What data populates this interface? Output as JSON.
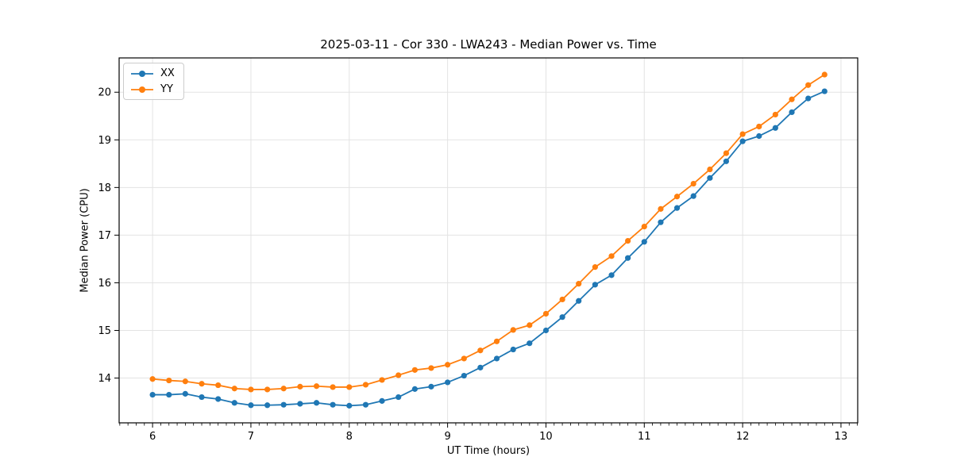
{
  "chart_data": {
    "type": "line",
    "title": "2025-03-11 - Cor 330 - LWA243 - Median Power vs. Time",
    "xlabel": "UT Time (hours)",
    "ylabel": "Median Power (CPU)",
    "xlim": [
      5.66,
      13.17
    ],
    "ylim": [
      13.06,
      20.72
    ],
    "x_ticks": [
      6,
      7,
      8,
      9,
      10,
      11,
      12,
      13
    ],
    "y_ticks": [
      14,
      15,
      16,
      17,
      18,
      19,
      20
    ],
    "x_minor_step": 0.08333,
    "grid": true,
    "legend_position": "upper-left",
    "background_color": "#ffffff",
    "grid_color": "#e3e3e3",
    "spine_color": "#000000",
    "x": [
      6.0,
      6.167,
      6.333,
      6.5,
      6.667,
      6.833,
      7.0,
      7.167,
      7.333,
      7.5,
      7.667,
      7.833,
      8.0,
      8.167,
      8.333,
      8.5,
      8.667,
      8.833,
      9.0,
      9.167,
      9.333,
      9.5,
      9.667,
      9.833,
      10.0,
      10.167,
      10.333,
      10.5,
      10.667,
      10.833,
      11.0,
      11.167,
      11.333,
      11.5,
      11.667,
      11.833,
      12.0,
      12.167,
      12.333,
      12.5,
      12.667,
      12.833
    ],
    "series": [
      {
        "name": "XX",
        "color": "#1f77b4",
        "values": [
          13.65,
          13.65,
          13.67,
          13.6,
          13.56,
          13.48,
          13.43,
          13.43,
          13.44,
          13.46,
          13.48,
          13.44,
          13.42,
          13.44,
          13.52,
          13.6,
          13.77,
          13.82,
          13.91,
          14.05,
          14.22,
          14.41,
          14.6,
          14.73,
          15.0,
          15.28,
          15.62,
          15.96,
          16.16,
          16.52,
          16.86,
          17.27,
          17.57,
          17.82,
          18.2,
          18.55,
          18.97,
          19.08,
          19.25,
          19.58,
          19.87,
          20.02
        ]
      },
      {
        "name": "YY",
        "color": "#ff7f0e",
        "values": [
          13.98,
          13.95,
          13.93,
          13.88,
          13.85,
          13.78,
          13.76,
          13.76,
          13.78,
          13.82,
          13.83,
          13.81,
          13.81,
          13.86,
          13.96,
          14.06,
          14.17,
          14.21,
          14.28,
          14.41,
          14.58,
          14.77,
          15.01,
          15.11,
          15.35,
          15.65,
          15.98,
          16.33,
          16.56,
          16.88,
          17.18,
          17.55,
          17.81,
          18.08,
          18.38,
          18.72,
          19.12,
          19.28,
          19.53,
          19.85,
          20.15,
          20.37
        ]
      }
    ]
  }
}
